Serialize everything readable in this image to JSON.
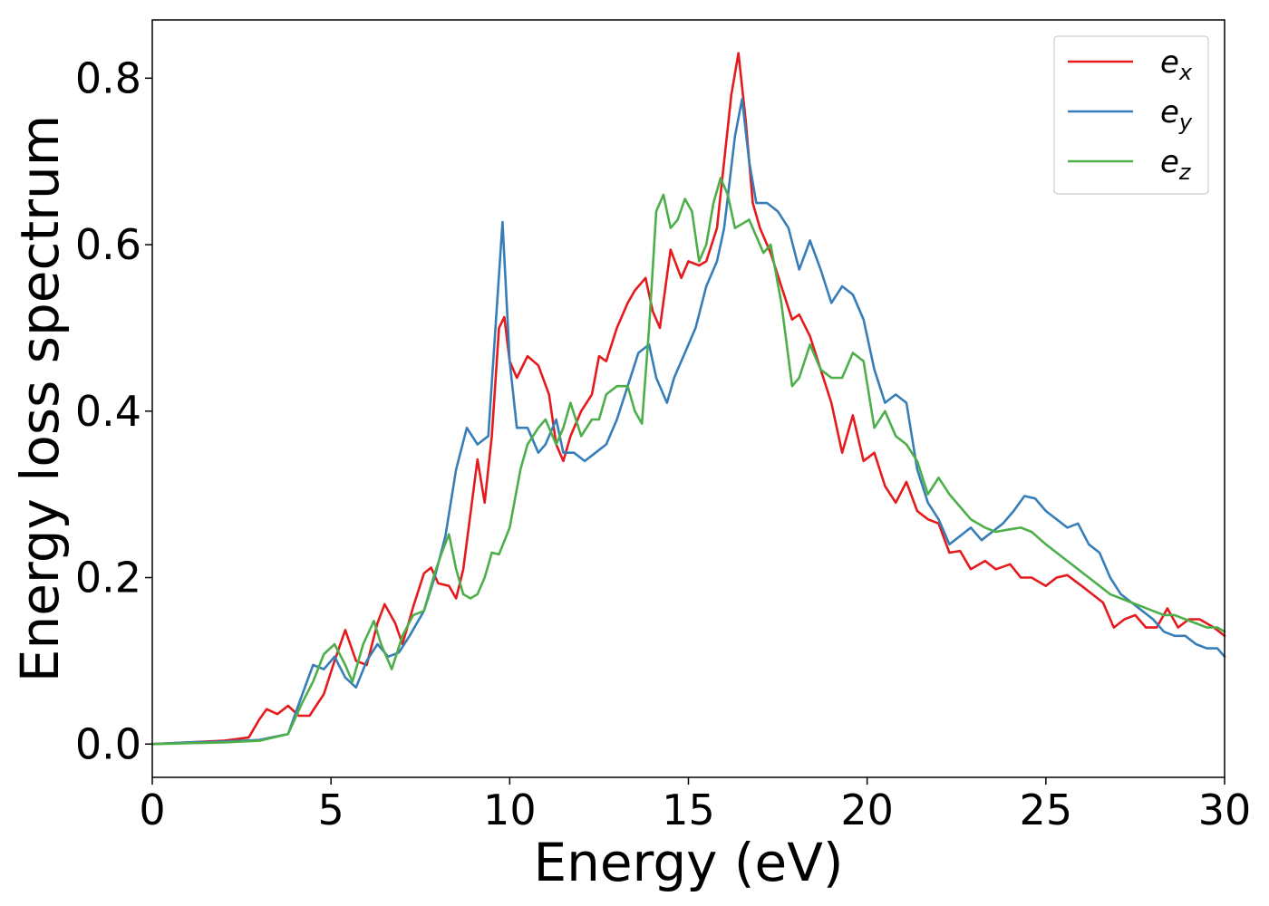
{
  "chart_data": {
    "type": "line",
    "xlabel": "Energy (eV)",
    "ylabel": "Energy loss spectrum",
    "xlim": [
      0,
      30
    ],
    "ylim": [
      -0.04,
      0.87
    ],
    "xticks": [
      0,
      5,
      10,
      15,
      20,
      25,
      30
    ],
    "yticks": [
      0.0,
      0.2,
      0.4,
      0.6,
      0.8
    ],
    "xtick_labels": [
      "0",
      "5",
      "10",
      "15",
      "20",
      "25",
      "30"
    ],
    "ytick_labels": [
      "0.0",
      "0.2",
      "0.4",
      "0.6",
      "0.8"
    ],
    "grid": false,
    "legend_position": "top-right",
    "series": [
      {
        "name": "e",
        "subscript": "x",
        "color": "#e41a1c",
        "x": [
          0,
          1,
          2,
          2.7,
          3.0,
          3.2,
          3.5,
          3.8,
          4.1,
          4.4,
          4.8,
          5.1,
          5.4,
          5.7,
          6.0,
          6.3,
          6.5,
          6.8,
          7.0,
          7.3,
          7.6,
          7.8,
          8.0,
          8.3,
          8.5,
          8.7,
          9.1,
          9.3,
          9.5,
          9.7,
          9.85,
          10.0,
          10.2,
          10.5,
          10.8,
          11.1,
          11.3,
          11.5,
          11.7,
          12.0,
          12.3,
          12.5,
          12.7,
          13.0,
          13.3,
          13.5,
          13.8,
          14.0,
          14.2,
          14.5,
          14.8,
          15.0,
          15.3,
          15.5,
          15.8,
          16.0,
          16.2,
          16.4,
          16.6,
          16.8,
          17.0,
          17.3,
          17.6,
          17.9,
          18.1,
          18.4,
          18.7,
          19.0,
          19.3,
          19.6,
          19.9,
          20.2,
          20.5,
          20.8,
          21.1,
          21.4,
          21.7,
          22.0,
          22.3,
          22.6,
          22.9,
          23.3,
          23.6,
          24.0,
          24.3,
          24.6,
          25.0,
          25.3,
          25.6,
          26.0,
          26.3,
          26.6,
          26.9,
          27.2,
          27.5,
          27.8,
          28.1,
          28.4,
          28.7,
          29.0,
          29.3,
          29.7,
          30.0
        ],
        "y": [
          0.0,
          0.002,
          0.004,
          0.008,
          0.03,
          0.042,
          0.036,
          0.046,
          0.034,
          0.034,
          0.06,
          0.1,
          0.137,
          0.1,
          0.095,
          0.145,
          0.168,
          0.145,
          0.12,
          0.165,
          0.205,
          0.212,
          0.193,
          0.19,
          0.175,
          0.21,
          0.342,
          0.29,
          0.37,
          0.5,
          0.513,
          0.46,
          0.44,
          0.466,
          0.455,
          0.42,
          0.36,
          0.34,
          0.37,
          0.4,
          0.42,
          0.466,
          0.46,
          0.5,
          0.53,
          0.545,
          0.56,
          0.52,
          0.5,
          0.594,
          0.56,
          0.58,
          0.575,
          0.58,
          0.62,
          0.7,
          0.78,
          0.83,
          0.75,
          0.65,
          0.62,
          0.59,
          0.55,
          0.51,
          0.516,
          0.49,
          0.45,
          0.41,
          0.35,
          0.395,
          0.34,
          0.35,
          0.31,
          0.29,
          0.315,
          0.28,
          0.27,
          0.265,
          0.23,
          0.232,
          0.21,
          0.22,
          0.21,
          0.216,
          0.2,
          0.2,
          0.19,
          0.2,
          0.203,
          0.19,
          0.18,
          0.17,
          0.14,
          0.15,
          0.155,
          0.14,
          0.14,
          0.163,
          0.14,
          0.15,
          0.15,
          0.14,
          0.13
        ]
      },
      {
        "name": "e",
        "subscript": "y",
        "color": "#377eb8",
        "x": [
          0,
          1,
          2,
          3,
          3.8,
          4.2,
          4.5,
          4.8,
          5.1,
          5.4,
          5.7,
          6.0,
          6.3,
          6.6,
          6.9,
          7.2,
          7.6,
          7.9,
          8.2,
          8.5,
          8.8,
          9.1,
          9.4,
          9.6,
          9.8,
          10.0,
          10.2,
          10.5,
          10.8,
          11.0,
          11.3,
          11.5,
          11.8,
          12.1,
          12.4,
          12.7,
          13.0,
          13.3,
          13.6,
          13.9,
          14.1,
          14.4,
          14.6,
          14.9,
          15.2,
          15.5,
          15.8,
          16.0,
          16.3,
          16.5,
          16.7,
          16.9,
          17.2,
          17.5,
          17.8,
          18.1,
          18.4,
          18.7,
          19.0,
          19.3,
          19.6,
          19.9,
          20.2,
          20.5,
          20.8,
          21.1,
          21.4,
          21.7,
          22.0,
          22.3,
          22.6,
          22.9,
          23.2,
          23.5,
          23.8,
          24.1,
          24.4,
          24.7,
          25.0,
          25.3,
          25.6,
          25.9,
          26.2,
          26.5,
          26.8,
          27.1,
          27.4,
          27.7,
          28.0,
          28.3,
          28.6,
          28.9,
          29.2,
          29.5,
          29.8,
          30.0
        ],
        "y": [
          0.0,
          0.002,
          0.003,
          0.005,
          0.012,
          0.06,
          0.095,
          0.09,
          0.105,
          0.08,
          0.068,
          0.1,
          0.12,
          0.105,
          0.11,
          0.13,
          0.16,
          0.2,
          0.25,
          0.33,
          0.38,
          0.36,
          0.37,
          0.5,
          0.627,
          0.46,
          0.38,
          0.38,
          0.35,
          0.36,
          0.39,
          0.35,
          0.35,
          0.34,
          0.35,
          0.36,
          0.39,
          0.43,
          0.47,
          0.48,
          0.44,
          0.41,
          0.44,
          0.47,
          0.5,
          0.55,
          0.58,
          0.62,
          0.73,
          0.775,
          0.7,
          0.65,
          0.65,
          0.64,
          0.62,
          0.57,
          0.605,
          0.57,
          0.53,
          0.55,
          0.54,
          0.51,
          0.45,
          0.41,
          0.42,
          0.41,
          0.33,
          0.29,
          0.27,
          0.24,
          0.25,
          0.26,
          0.245,
          0.255,
          0.265,
          0.28,
          0.298,
          0.295,
          0.28,
          0.27,
          0.26,
          0.265,
          0.24,
          0.23,
          0.2,
          0.18,
          0.17,
          0.16,
          0.15,
          0.135,
          0.13,
          0.13,
          0.12,
          0.115,
          0.115,
          0.105
        ]
      },
      {
        "name": "e",
        "subscript": "z",
        "color": "#4daf4a",
        "x": [
          0,
          1,
          2,
          3,
          3.8,
          4.2,
          4.5,
          4.8,
          5.1,
          5.4,
          5.6,
          5.9,
          6.2,
          6.4,
          6.7,
          7.0,
          7.3,
          7.6,
          7.9,
          8.1,
          8.3,
          8.5,
          8.7,
          8.9,
          9.1,
          9.3,
          9.5,
          9.7,
          10.0,
          10.3,
          10.5,
          10.8,
          11.0,
          11.3,
          11.5,
          11.7,
          12.0,
          12.3,
          12.5,
          12.7,
          13.0,
          13.3,
          13.5,
          13.7,
          13.9,
          14.1,
          14.3,
          14.5,
          14.7,
          14.9,
          15.1,
          15.3,
          15.5,
          15.7,
          15.9,
          16.1,
          16.3,
          16.5,
          16.7,
          16.9,
          17.1,
          17.3,
          17.6,
          17.9,
          18.1,
          18.4,
          18.7,
          19.0,
          19.3,
          19.6,
          19.9,
          20.2,
          20.5,
          20.8,
          21.1,
          21.4,
          21.7,
          22.0,
          22.3,
          22.6,
          22.9,
          23.3,
          23.6,
          24.0,
          24.3,
          24.6,
          25.0,
          25.3,
          25.6,
          25.9,
          26.2,
          26.5,
          26.8,
          27.1,
          27.4,
          27.7,
          28.0,
          28.3,
          28.6,
          28.9,
          29.2,
          29.5,
          29.8,
          30.0
        ],
        "y": [
          0.0,
          0.001,
          0.002,
          0.004,
          0.012,
          0.05,
          0.075,
          0.108,
          0.12,
          0.095,
          0.075,
          0.12,
          0.148,
          0.12,
          0.09,
          0.13,
          0.155,
          0.16,
          0.205,
          0.23,
          0.252,
          0.21,
          0.18,
          0.175,
          0.18,
          0.2,
          0.23,
          0.228,
          0.26,
          0.33,
          0.36,
          0.38,
          0.39,
          0.36,
          0.38,
          0.41,
          0.37,
          0.39,
          0.39,
          0.42,
          0.43,
          0.43,
          0.4,
          0.385,
          0.5,
          0.64,
          0.66,
          0.62,
          0.63,
          0.655,
          0.64,
          0.58,
          0.6,
          0.65,
          0.68,
          0.66,
          0.62,
          0.625,
          0.63,
          0.61,
          0.59,
          0.6,
          0.53,
          0.43,
          0.44,
          0.48,
          0.45,
          0.44,
          0.44,
          0.47,
          0.46,
          0.38,
          0.4,
          0.37,
          0.36,
          0.34,
          0.3,
          0.32,
          0.3,
          0.285,
          0.27,
          0.26,
          0.255,
          0.258,
          0.26,
          0.255,
          0.24,
          0.23,
          0.22,
          0.21,
          0.2,
          0.19,
          0.18,
          0.175,
          0.17,
          0.165,
          0.16,
          0.155,
          0.155,
          0.15,
          0.145,
          0.14,
          0.14,
          0.135
        ]
      }
    ]
  }
}
